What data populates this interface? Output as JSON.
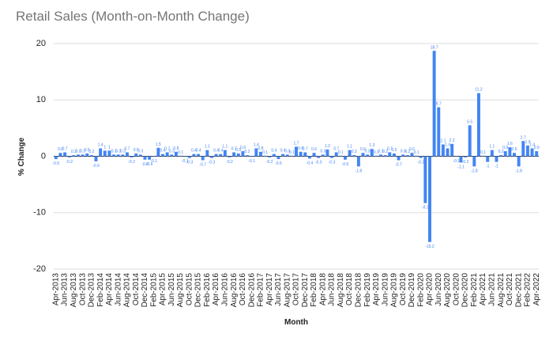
{
  "chart_data": {
    "type": "bar",
    "title": "Retail Sales (Month-on-Month Change)",
    "x_label": "Month",
    "y_label": "% Change",
    "color": "#4285f4",
    "grid": true,
    "ylim": [
      -20,
      20
    ],
    "yticks": [
      -20,
      -10,
      0,
      10,
      20
    ],
    "categories": [
      "Apr-2013",
      null,
      "Jun-2013",
      null,
      "Aug-2013",
      null,
      "Oct-2013",
      null,
      "Dec-2013",
      null,
      "Feb-2014",
      null,
      "Apr-2014",
      null,
      "Jun-2014",
      null,
      "Aug-2014",
      null,
      "Oct-2014",
      null,
      "Dec-2014",
      null,
      "Feb-2015",
      null,
      "Apr-2015",
      null,
      "Jun-2015",
      null,
      "Aug-2015",
      null,
      "Oct-2015",
      null,
      "Dec-2015",
      null,
      "Feb-2016",
      null,
      "Apr-2016",
      null,
      "Jun-2016",
      null,
      "Aug-2016",
      null,
      "Oct-2016",
      null,
      "Dec-2016",
      null,
      "Feb-2017",
      null,
      "Apr-2017",
      null,
      "Jun-2017",
      null,
      "Aug-2017",
      null,
      "Oct-2017",
      null,
      "Dec-2017",
      null,
      "Feb-2018",
      null,
      "Apr-2018",
      null,
      "Jun-2018",
      null,
      "Aug-2018",
      null,
      "Oct-2018",
      null,
      "Dec-2018",
      null,
      "Feb-2019",
      null,
      "Apr-2019",
      null,
      "Jun-2019",
      null,
      "Aug-2019",
      null,
      "Oct-2019",
      null,
      "Dec-2019",
      null,
      "Feb-2020",
      null,
      "Apr-2020",
      null,
      "Jun-2020",
      null,
      "Aug-2020",
      null,
      "Oct-2020",
      null,
      "Dec-2020",
      null,
      "Feb-2021",
      null,
      "Apr-2021",
      null,
      "Jun-2021",
      null,
      "Aug-2021",
      null,
      "Oct-2021",
      null,
      "Dec-2021",
      null,
      "Feb-2022",
      null,
      "Apr-2022"
    ],
    "values": [
      -0.5,
      0.6,
      0.7,
      -0.2,
      0.2,
      0.3,
      0.3,
      0.5,
      0.2,
      -0.9,
      1.4,
      1.0,
      1.0,
      0.3,
      0.3,
      0.3,
      0.7,
      -0.2,
      0.5,
      0.3,
      -0.6,
      -0.6,
      -0.1,
      1.5,
      0.4,
      0.7,
      0.3,
      0.8,
      0.1,
      -0.1,
      -0.3,
      0.4,
      0.4,
      -0.7,
      1.1,
      -0.3,
      0.4,
      0.4,
      1.1,
      -0.2,
      0.7,
      0.5,
      0.9,
      0.2,
      -0.1,
      1.4,
      0.8,
      0.1,
      -0.2,
      0.4,
      -0.5,
      0.4,
      0.3,
      0.1,
      1.7,
      0.8,
      0.7,
      -0.4,
      0.6,
      -0.3,
      0.3,
      1.2,
      -0.3,
      0.7,
      0.1,
      -0.6,
      1.1,
      0.2,
      -1.8,
      0.6,
      0.3,
      1.3,
      0.1,
      0.3,
      0.2,
      0.7,
      0.5,
      -0.7,
      0.3,
      0.2,
      0.6,
      0.1,
      -0.3,
      -8.3,
      -15.2,
      18.7,
      8.7,
      2.1,
      1.4,
      2.2,
      -0.1,
      -1.1,
      -0.2,
      5.5,
      -1.8,
      11.2,
      0.1,
      -1,
      1.1,
      -1,
      0.2,
      0.9,
      1.6,
      0.6,
      -1.8,
      2.7,
      1.9,
      1.4,
      0.9
    ]
  }
}
